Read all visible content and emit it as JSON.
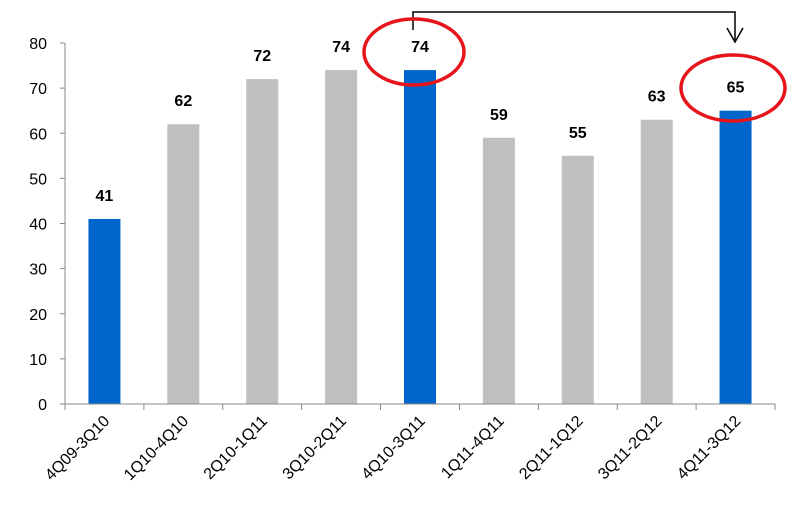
{
  "chart_data": {
    "type": "bar",
    "categories": [
      "4Q09-3Q10",
      "1Q10-4Q10",
      "2Q10-1Q11",
      "3Q10-2Q11",
      "4Q10-3Q11",
      "1Q11-4Q11",
      "2Q11-1Q12",
      "3Q11-2Q12",
      "4Q11-3Q12"
    ],
    "values": [
      41,
      62,
      72,
      74,
      74,
      59,
      55,
      63,
      65
    ],
    "colors": [
      "#0066cc",
      "#bfbfbf",
      "#bfbfbf",
      "#bfbfbf",
      "#0066cc",
      "#bfbfbf",
      "#bfbfbf",
      "#bfbfbf",
      "#0066cc"
    ],
    "ylim": [
      0,
      80
    ],
    "yticks": [
      0,
      10,
      20,
      30,
      40,
      50,
      60,
      70,
      80
    ],
    "grid": false
  }
}
